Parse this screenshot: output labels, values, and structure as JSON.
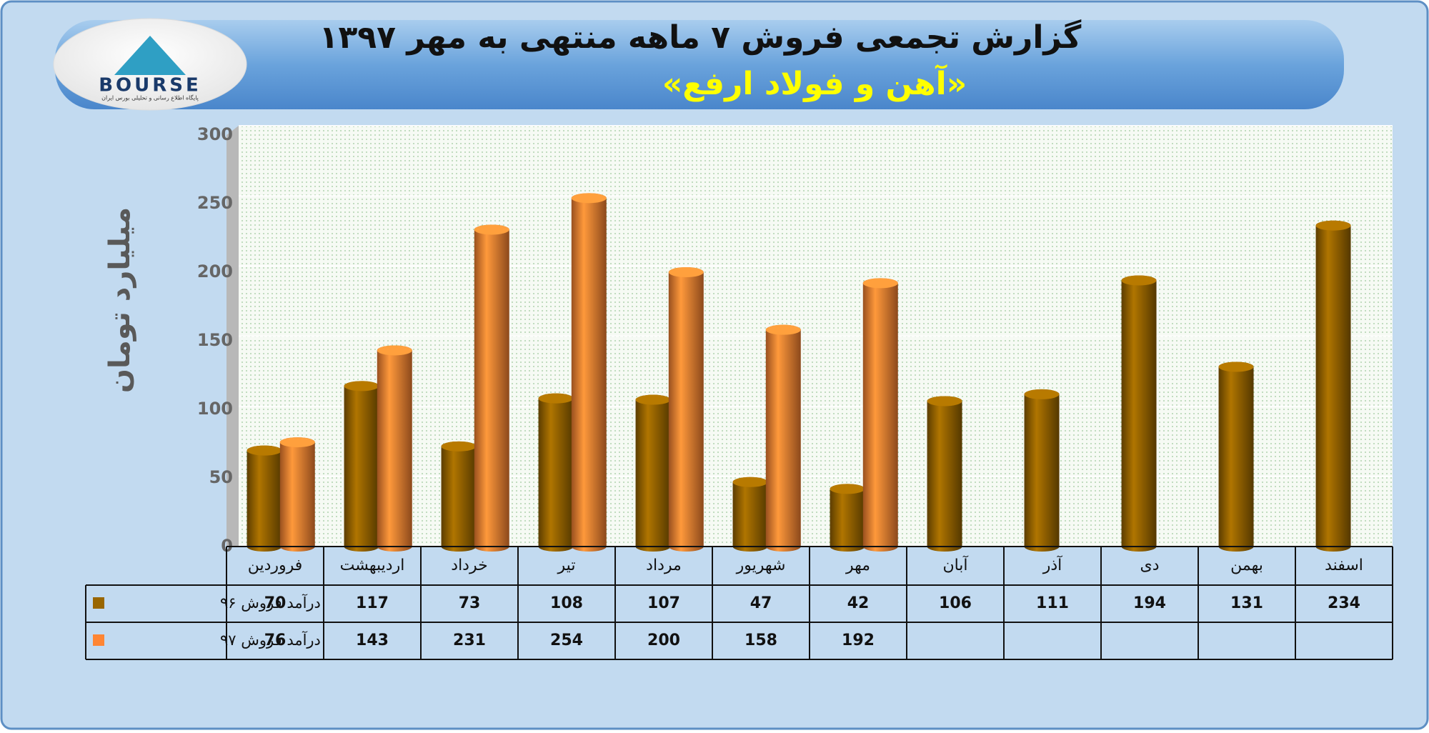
{
  "logo": {
    "name": "BOURSE",
    "caption": "پایگاه اطلاع رسانی و تحلیلی بورس ایران"
  },
  "chart_data": {
    "type": "bar",
    "title": "گزارش تجمعی فروش ۷ ماهه منتهی به مهر ۱۳۹۷",
    "subtitle": "«آهن و فولاد ارفع»",
    "y_label": "میلیارد تومان",
    "categories": [
      "فروردین",
      "اردیبهشت",
      "خرداد",
      "تیر",
      "مرداد",
      "شهریور",
      "مهر",
      "آبان",
      "آذر",
      "دی",
      "بهمن",
      "اسفند"
    ],
    "series": [
      {
        "name": "درآمد فروش ۹۶",
        "color": "#996600",
        "values": [
          70,
          117,
          73,
          108,
          107,
          47,
          42,
          106,
          111,
          194,
          131,
          234
        ]
      },
      {
        "name": "درآمد فروش ۹۷",
        "color": "#ff8533",
        "values": [
          76,
          143,
          231,
          254,
          200,
          158,
          192,
          null,
          null,
          null,
          null,
          null
        ]
      }
    ],
    "ylim": [
      0,
      300
    ],
    "yticks": [
      0,
      50,
      100,
      150,
      200,
      250,
      300
    ],
    "grid": true
  }
}
